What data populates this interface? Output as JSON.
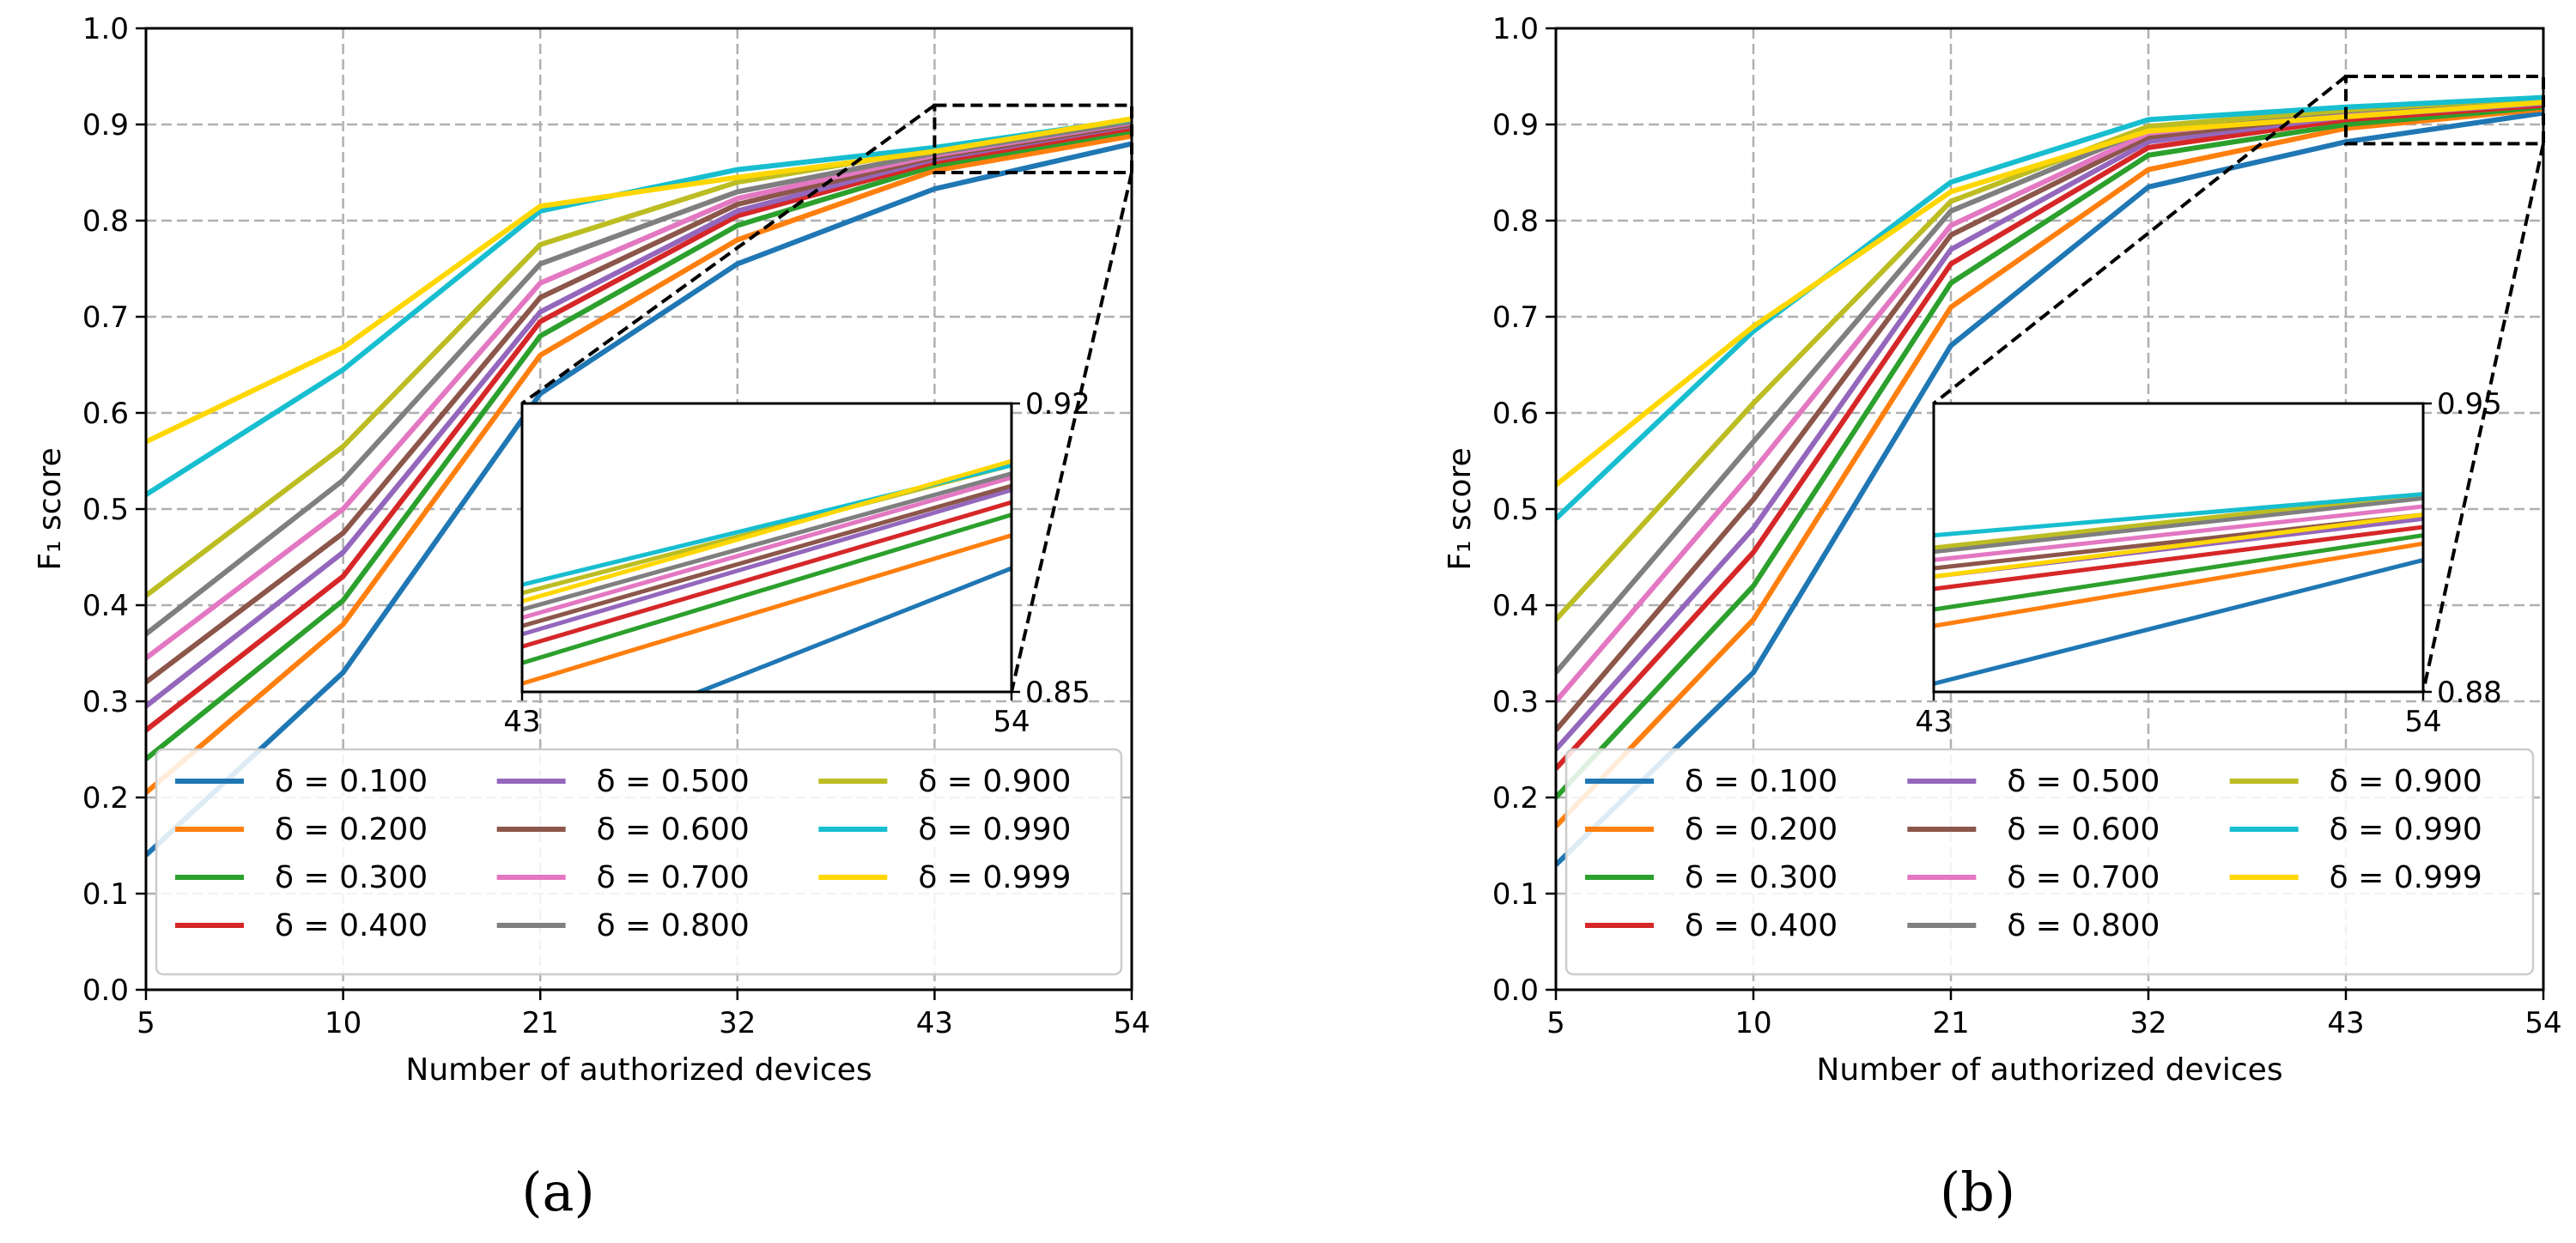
{
  "figure": {
    "panel_labels": [
      "(a)",
      "(b)"
    ]
  },
  "chart_data": [
    {
      "type": "line",
      "panel": "(a)",
      "title": "",
      "xlabel": "Number of authorized devices",
      "ylabel": "F₁ score",
      "x": [
        5,
        10,
        21,
        32,
        43,
        54
      ],
      "xtick_labels": [
        "5",
        "10",
        "21",
        "32",
        "43",
        "54"
      ],
      "ylim": [
        0.0,
        1.0
      ],
      "ytick_labels": [
        "0.0",
        "0.1",
        "0.2",
        "0.3",
        "0.4",
        "0.5",
        "0.6",
        "0.7",
        "0.8",
        "0.9",
        "1.0"
      ],
      "grid": true,
      "legend_position": "lower-left",
      "series": [
        {
          "name": "δ = 0.100",
          "color": "#1f77b4",
          "values": [
            0.14,
            0.33,
            0.62,
            0.755,
            0.833,
            0.88
          ]
        },
        {
          "name": "δ = 0.200",
          "color": "#ff7f0e",
          "values": [
            0.205,
            0.38,
            0.66,
            0.78,
            0.852,
            0.888
          ]
        },
        {
          "name": "δ = 0.300",
          "color": "#2ca02c",
          "values": [
            0.24,
            0.405,
            0.68,
            0.795,
            0.857,
            0.893
          ]
        },
        {
          "name": "δ = 0.400",
          "color": "#d62728",
          "values": [
            0.27,
            0.43,
            0.695,
            0.805,
            0.861,
            0.896
          ]
        },
        {
          "name": "δ = 0.500",
          "color": "#9467bd",
          "values": [
            0.295,
            0.455,
            0.705,
            0.81,
            0.864,
            0.899
          ]
        },
        {
          "name": "δ = 0.600",
          "color": "#8c564b",
          "values": [
            0.32,
            0.475,
            0.72,
            0.817,
            0.866,
            0.9
          ]
        },
        {
          "name": "δ = 0.700",
          "color": "#e377c2",
          "values": [
            0.345,
            0.5,
            0.735,
            0.823,
            0.868,
            0.902
          ]
        },
        {
          "name": "δ = 0.800",
          "color": "#7f7f7f",
          "values": [
            0.37,
            0.53,
            0.755,
            0.83,
            0.87,
            0.903
          ]
        },
        {
          "name": "δ = 0.900",
          "color": "#bcbd22",
          "values": [
            0.41,
            0.565,
            0.775,
            0.84,
            0.874,
            0.905
          ]
        },
        {
          "name": "δ = 0.990",
          "color": "#17becf",
          "values": [
            0.515,
            0.645,
            0.81,
            0.853,
            0.876,
            0.905
          ]
        },
        {
          "name": "δ = 0.999",
          "color": "#ffd700",
          "values": [
            0.57,
            0.668,
            0.815,
            0.845,
            0.872,
            0.906
          ]
        }
      ],
      "inset": {
        "xlim": [
          43,
          54
        ],
        "ylim": [
          0.85,
          0.92
        ],
        "xtick_labels": [
          "43",
          "54"
        ],
        "ytick_labels": [
          "0.85",
          "0.92"
        ]
      }
    },
    {
      "type": "line",
      "panel": "(b)",
      "title": "",
      "xlabel": "Number of authorized devices",
      "ylabel": "F₁ score",
      "x": [
        5,
        10,
        21,
        32,
        43,
        54
      ],
      "xtick_labels": [
        "5",
        "10",
        "21",
        "32",
        "43",
        "54"
      ],
      "ylim": [
        0.0,
        1.0
      ],
      "ytick_labels": [
        "0.0",
        "0.1",
        "0.2",
        "0.3",
        "0.4",
        "0.5",
        "0.6",
        "0.7",
        "0.8",
        "0.9",
        "1.0"
      ],
      "grid": true,
      "legend_position": "lower-left",
      "series": [
        {
          "name": "δ = 0.100",
          "color": "#1f77b4",
          "values": [
            0.13,
            0.33,
            0.67,
            0.835,
            0.882,
            0.912
          ]
        },
        {
          "name": "δ = 0.200",
          "color": "#ff7f0e",
          "values": [
            0.17,
            0.385,
            0.71,
            0.853,
            0.896,
            0.916
          ]
        },
        {
          "name": "δ = 0.300",
          "color": "#2ca02c",
          "values": [
            0.2,
            0.42,
            0.735,
            0.868,
            0.9,
            0.918
          ]
        },
        {
          "name": "δ = 0.400",
          "color": "#d62728",
          "values": [
            0.23,
            0.455,
            0.755,
            0.876,
            0.905,
            0.92
          ]
        },
        {
          "name": "δ = 0.500",
          "color": "#9467bd",
          "values": [
            0.25,
            0.48,
            0.77,
            0.882,
            0.908,
            0.922
          ]
        },
        {
          "name": "δ = 0.600",
          "color": "#8c564b",
          "values": [
            0.27,
            0.51,
            0.785,
            0.887,
            0.91,
            0.923
          ]
        },
        {
          "name": "δ = 0.700",
          "color": "#e377c2",
          "values": [
            0.3,
            0.54,
            0.795,
            0.891,
            0.912,
            0.925
          ]
        },
        {
          "name": "δ = 0.800",
          "color": "#7f7f7f",
          "values": [
            0.33,
            0.57,
            0.81,
            0.895,
            0.914,
            0.927
          ]
        },
        {
          "name": "δ = 0.900",
          "color": "#bcbd22",
          "values": [
            0.385,
            0.61,
            0.82,
            0.898,
            0.915,
            0.928
          ]
        },
        {
          "name": "δ = 0.990",
          "color": "#17becf",
          "values": [
            0.49,
            0.685,
            0.84,
            0.905,
            0.918,
            0.928
          ]
        },
        {
          "name": "δ = 0.999",
          "color": "#ffd700",
          "values": [
            0.525,
            0.69,
            0.83,
            0.893,
            0.908,
            0.923
          ]
        }
      ],
      "inset": {
        "xlim": [
          43,
          54
        ],
        "ylim": [
          0.88,
          0.95
        ],
        "xtick_labels": [
          "43",
          "54"
        ],
        "ytick_labels": [
          "0.88",
          "0.95"
        ]
      }
    }
  ]
}
